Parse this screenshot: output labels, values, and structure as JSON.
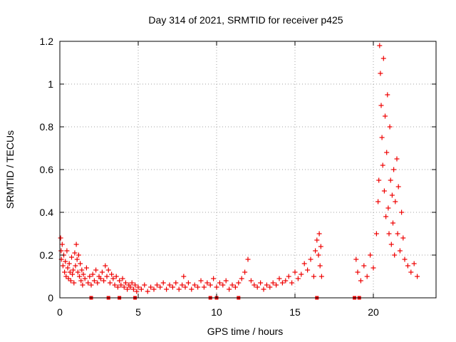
{
  "chart_data": {
    "type": "scatter",
    "title": "Day 314 of 2021, SRMTID for receiver p425",
    "xlabel": "GPS time / hours",
    "ylabel": "SRMTID / TECUs",
    "xlim": [
      0,
      24
    ],
    "ylim": [
      0,
      1.2
    ],
    "grid": true,
    "marker": "+",
    "color": "#ee0000",
    "xticks": [
      {
        "value": 0,
        "label": "0"
      },
      {
        "value": 5,
        "label": "5"
      },
      {
        "value": 10,
        "label": "10"
      },
      {
        "value": 15,
        "label": "15"
      },
      {
        "value": 20,
        "label": "20"
      }
    ],
    "yticks": [
      {
        "value": 0,
        "label": "0"
      },
      {
        "value": 0.2,
        "label": "0.2"
      },
      {
        "value": 0.4,
        "label": "0.4"
      },
      {
        "value": 0.6,
        "label": "0.6"
      },
      {
        "value": 0.8,
        "label": "0.8"
      },
      {
        "value": 1.0,
        "label": "1"
      },
      {
        "value": 1.2,
        "label": "1.2"
      }
    ],
    "series": [
      {
        "name": "SRMTID",
        "points": [
          [
            0.05,
            0.28
          ],
          [
            0.08,
            0.22
          ],
          [
            0.1,
            0.18
          ],
          [
            0.15,
            0.25
          ],
          [
            0.2,
            0.15
          ],
          [
            0.25,
            0.2
          ],
          [
            0.3,
            0.12
          ],
          [
            0.35,
            0.17
          ],
          [
            0.4,
            0.1
          ],
          [
            0.45,
            0.22
          ],
          [
            0.5,
            0.14
          ],
          [
            0.55,
            0.09
          ],
          [
            0.6,
            0.16
          ],
          [
            0.65,
            0.12
          ],
          [
            0.7,
            0.08
          ],
          [
            0.75,
            0.19
          ],
          [
            0.8,
            0.11
          ],
          [
            0.85,
            0.13
          ],
          [
            0.9,
            0.07
          ],
          [
            0.95,
            0.21
          ],
          [
            1.0,
            0.15
          ],
          [
            1.05,
            0.25
          ],
          [
            1.1,
            0.18
          ],
          [
            1.15,
            0.12
          ],
          [
            1.2,
            0.2
          ],
          [
            1.25,
            0.1
          ],
          [
            1.3,
            0.16
          ],
          [
            1.35,
            0.08
          ],
          [
            1.4,
            0.13
          ],
          [
            1.45,
            0.06
          ],
          [
            1.5,
            0.11
          ],
          [
            1.6,
            0.09
          ],
          [
            1.7,
            0.14
          ],
          [
            1.8,
            0.07
          ],
          [
            1.9,
            0.1
          ],
          [
            2.0,
            0.06
          ],
          [
            2.1,
            0.11
          ],
          [
            2.2,
            0.08
          ],
          [
            2.3,
            0.13
          ],
          [
            2.4,
            0.07
          ],
          [
            2.5,
            0.1
          ],
          [
            2.6,
            0.09
          ],
          [
            2.7,
            0.12
          ],
          [
            2.8,
            0.08
          ],
          [
            2.9,
            0.15
          ],
          [
            3.0,
            0.1
          ],
          [
            3.1,
            0.13
          ],
          [
            3.2,
            0.07
          ],
          [
            3.3,
            0.11
          ],
          [
            3.4,
            0.09
          ],
          [
            3.5,
            0.06
          ],
          [
            3.6,
            0.1
          ],
          [
            3.7,
            0.05
          ],
          [
            3.8,
            0.08
          ],
          [
            3.9,
            0.06
          ],
          [
            4.0,
            0.09
          ],
          [
            4.1,
            0.05
          ],
          [
            4.2,
            0.07
          ],
          [
            4.3,
            0.04
          ],
          [
            4.4,
            0.06
          ],
          [
            4.5,
            0.05
          ],
          [
            4.6,
            0.07
          ],
          [
            4.7,
            0.04
          ],
          [
            4.8,
            0.06
          ],
          [
            4.9,
            0.03
          ],
          [
            5.0,
            0.05
          ],
          [
            5.2,
            0.04
          ],
          [
            5.4,
            0.06
          ],
          [
            5.6,
            0.03
          ],
          [
            5.8,
            0.05
          ],
          [
            6.0,
            0.04
          ],
          [
            6.2,
            0.06
          ],
          [
            6.4,
            0.05
          ],
          [
            6.6,
            0.07
          ],
          [
            6.8,
            0.04
          ],
          [
            7.0,
            0.06
          ],
          [
            7.2,
            0.05
          ],
          [
            7.4,
            0.07
          ],
          [
            7.6,
            0.04
          ],
          [
            7.8,
            0.06
          ],
          [
            7.9,
            0.1
          ],
          [
            8.0,
            0.05
          ],
          [
            8.2,
            0.07
          ],
          [
            8.4,
            0.04
          ],
          [
            8.6,
            0.06
          ],
          [
            8.8,
            0.05
          ],
          [
            9.0,
            0.08
          ],
          [
            9.2,
            0.05
          ],
          [
            9.4,
            0.07
          ],
          [
            9.6,
            0.06
          ],
          [
            9.8,
            0.09
          ],
          [
            10.0,
            0.05
          ],
          [
            10.2,
            0.07
          ],
          [
            10.4,
            0.06
          ],
          [
            10.6,
            0.08
          ],
          [
            10.8,
            0.04
          ],
          [
            11.0,
            0.06
          ],
          [
            11.2,
            0.05
          ],
          [
            11.4,
            0.07
          ],
          [
            11.6,
            0.09
          ],
          [
            11.8,
            0.12
          ],
          [
            12.0,
            0.18
          ],
          [
            12.2,
            0.08
          ],
          [
            12.4,
            0.06
          ],
          [
            12.6,
            0.05
          ],
          [
            12.8,
            0.07
          ],
          [
            13.0,
            0.04
          ],
          [
            13.2,
            0.06
          ],
          [
            13.4,
            0.05
          ],
          [
            13.6,
            0.07
          ],
          [
            13.8,
            0.06
          ],
          [
            14.0,
            0.09
          ],
          [
            14.2,
            0.07
          ],
          [
            14.4,
            0.08
          ],
          [
            14.6,
            0.1
          ],
          [
            14.8,
            0.07
          ],
          [
            15.0,
            0.12
          ],
          [
            15.2,
            0.09
          ],
          [
            15.4,
            0.11
          ],
          [
            15.6,
            0.16
          ],
          [
            15.8,
            0.13
          ],
          [
            16.0,
            0.18
          ],
          [
            16.2,
            0.1
          ],
          [
            16.3,
            0.22
          ],
          [
            16.4,
            0.27
          ],
          [
            16.5,
            0.2
          ],
          [
            16.55,
            0.3
          ],
          [
            16.6,
            0.15
          ],
          [
            16.65,
            0.24
          ],
          [
            16.7,
            0.1
          ],
          [
            18.9,
            0.18
          ],
          [
            19.0,
            0.12
          ],
          [
            19.2,
            0.08
          ],
          [
            19.4,
            0.15
          ],
          [
            19.6,
            0.1
          ],
          [
            19.8,
            0.2
          ],
          [
            20.0,
            0.14
          ],
          [
            20.2,
            0.3
          ],
          [
            20.3,
            0.45
          ],
          [
            20.35,
            0.55
          ],
          [
            20.4,
            1.18
          ],
          [
            20.45,
            1.05
          ],
          [
            20.5,
            0.9
          ],
          [
            20.55,
            0.75
          ],
          [
            20.6,
            0.62
          ],
          [
            20.65,
            1.12
          ],
          [
            20.7,
            0.5
          ],
          [
            20.75,
            0.85
          ],
          [
            20.8,
            0.38
          ],
          [
            20.85,
            0.68
          ],
          [
            20.9,
            0.95
          ],
          [
            20.95,
            0.42
          ],
          [
            21.0,
            0.3
          ],
          [
            21.05,
            0.8
          ],
          [
            21.1,
            0.55
          ],
          [
            21.15,
            0.25
          ],
          [
            21.2,
            0.48
          ],
          [
            21.25,
            0.35
          ],
          [
            21.3,
            0.6
          ],
          [
            21.35,
            0.2
          ],
          [
            21.4,
            0.45
          ],
          [
            21.5,
            0.65
          ],
          [
            21.55,
            0.3
          ],
          [
            21.6,
            0.52
          ],
          [
            21.7,
            0.22
          ],
          [
            21.8,
            0.4
          ],
          [
            21.9,
            0.28
          ],
          [
            22.0,
            0.18
          ],
          [
            22.2,
            0.15
          ],
          [
            22.4,
            0.12
          ],
          [
            22.6,
            0.16
          ],
          [
            22.8,
            0.1
          ]
        ],
        "zero_markers": [
          2.0,
          3.1,
          3.8,
          4.8,
          9.6,
          10.0,
          11.4,
          16.4,
          18.8,
          19.1
        ]
      }
    ]
  }
}
